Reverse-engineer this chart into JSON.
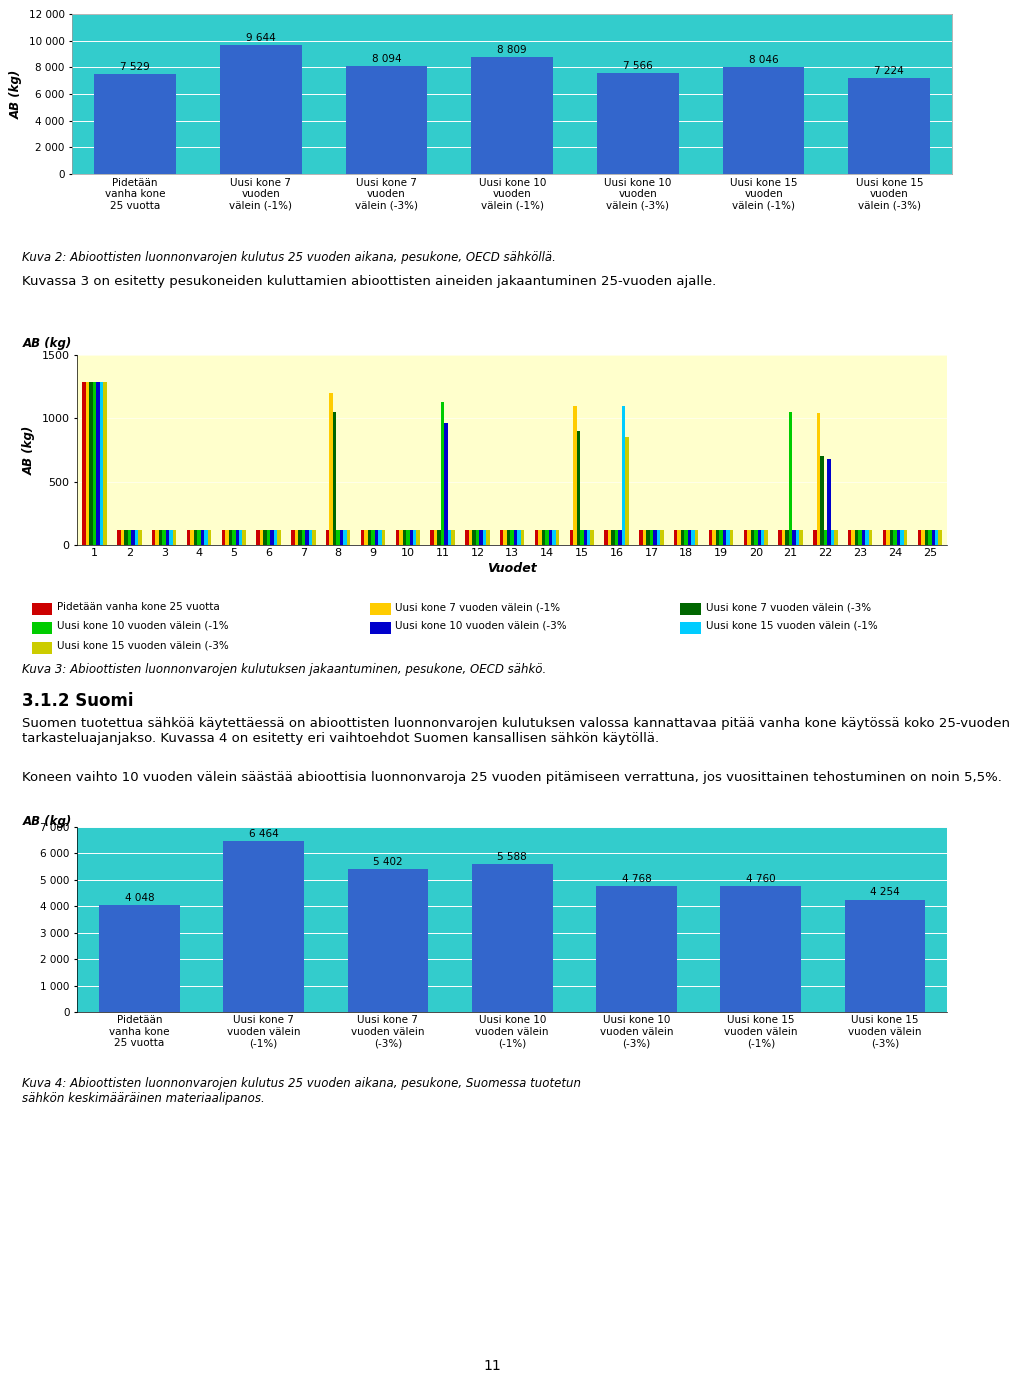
{
  "chart1": {
    "categories": [
      "Pidetään\nvanha kone\n25 vuotta",
      "Uusi kone 7\nvuoden\nvälein (-1%)",
      "Uusi kone 7\nvuoden\nvälein (-3%)",
      "Uusi kone 10\nvuoden\nvälein (-1%)",
      "Uusi kone 10\nvuoden\nvälein (-3%)",
      "Uusi kone 15\nvuoden\nvälein (-1%)",
      "Uusi kone 15\nvuoden\nvälein (-3%)"
    ],
    "values": [
      7529,
      9644,
      8094,
      8809,
      7566,
      8046,
      7224
    ],
    "bar_color": "#3366CC",
    "bg_color": "#33CCCC",
    "ylim": [
      0,
      12000
    ],
    "yticks": [
      0,
      2000,
      4000,
      6000,
      8000,
      10000,
      12000
    ],
    "ylabel": "AB (kg)",
    "caption": "Kuva 2: Abioottisten luonnonvarojen kulutus 25 vuoden aikana, pesukone, OECD sähköllä."
  },
  "text_between": "Kuvassa 3 on esitetty pesukoneiden kuluttamien abioottisten aineiden jakaantuminen 25-vuoden ajalle.",
  "chart2": {
    "xlabel": "Vuodet",
    "ylabel": "AB (kg)",
    "bg_color": "#FFFFCC",
    "ylim": [
      0,
      1500
    ],
    "yticks": [
      0,
      500,
      1000,
      1500
    ],
    "xticks": [
      1,
      2,
      3,
      4,
      5,
      6,
      7,
      8,
      9,
      10,
      11,
      12,
      13,
      14,
      15,
      16,
      17,
      18,
      19,
      20,
      21,
      22,
      23,
      24,
      25
    ],
    "series": [
      {
        "label": "Pidetään vanha kone 25 vuotta",
        "color": "#CC0000",
        "years": [
          1,
          2,
          3,
          4,
          5,
          6,
          7,
          8,
          9,
          10,
          11,
          12,
          13,
          14,
          15,
          16,
          17,
          18,
          19,
          20,
          21,
          22,
          23,
          24,
          25
        ],
        "values": [
          1290,
          120,
          120,
          120,
          120,
          120,
          120,
          120,
          120,
          120,
          120,
          120,
          120,
          120,
          120,
          120,
          120,
          120,
          120,
          120,
          120,
          120,
          120,
          120,
          120
        ]
      },
      {
        "label": "Uusi kone 7 vuoden välein (-1%",
        "color": "#FFCC00",
        "years": [
          1,
          2,
          3,
          4,
          5,
          6,
          7,
          8,
          9,
          10,
          11,
          12,
          13,
          14,
          15,
          16,
          17,
          18,
          19,
          20,
          21,
          22,
          23,
          24,
          25
        ],
        "values": [
          1290,
          120,
          120,
          120,
          120,
          120,
          120,
          1200,
          120,
          120,
          120,
          120,
          120,
          120,
          1100,
          120,
          120,
          120,
          120,
          120,
          120,
          1040,
          120,
          120,
          120
        ]
      },
      {
        "label": "Uusi kone 7 vuoden välein (-3%",
        "color": "#006600",
        "years": [
          1,
          2,
          3,
          4,
          5,
          6,
          7,
          8,
          9,
          10,
          11,
          12,
          13,
          14,
          15,
          16,
          17,
          18,
          19,
          20,
          21,
          22,
          23,
          24,
          25
        ],
        "values": [
          1290,
          120,
          120,
          120,
          120,
          120,
          120,
          1050,
          120,
          120,
          120,
          120,
          120,
          120,
          900,
          120,
          120,
          120,
          120,
          120,
          120,
          700,
          120,
          120,
          120
        ]
      },
      {
        "label": "Uusi kone 10 vuoden välein (-1%",
        "color": "#00CC00",
        "years": [
          1,
          2,
          3,
          4,
          5,
          6,
          7,
          8,
          9,
          10,
          11,
          12,
          13,
          14,
          15,
          16,
          17,
          18,
          19,
          20,
          21,
          22,
          23,
          24,
          25
        ],
        "values": [
          1290,
          120,
          120,
          120,
          120,
          120,
          120,
          120,
          120,
          120,
          1130,
          120,
          120,
          120,
          120,
          120,
          120,
          120,
          120,
          120,
          1050,
          120,
          120,
          120,
          120
        ]
      },
      {
        "label": "Uusi kone 10 vuoden välein (-3%",
        "color": "#0000CC",
        "years": [
          1,
          2,
          3,
          4,
          5,
          6,
          7,
          8,
          9,
          10,
          11,
          12,
          13,
          14,
          15,
          16,
          17,
          18,
          19,
          20,
          21,
          22,
          23,
          24,
          25
        ],
        "values": [
          1290,
          120,
          120,
          120,
          120,
          120,
          120,
          120,
          120,
          120,
          960,
          120,
          120,
          120,
          120,
          120,
          120,
          120,
          120,
          120,
          120,
          680,
          120,
          120,
          120
        ]
      },
      {
        "label": "Uusi kone 15 vuoden välein (-1%",
        "color": "#00CCFF",
        "years": [
          1,
          2,
          3,
          4,
          5,
          6,
          7,
          8,
          9,
          10,
          11,
          12,
          13,
          14,
          15,
          16,
          17,
          18,
          19,
          20,
          21,
          22,
          23,
          24,
          25
        ],
        "values": [
          1290,
          120,
          120,
          120,
          120,
          120,
          120,
          120,
          120,
          120,
          120,
          120,
          120,
          120,
          120,
          1100,
          120,
          120,
          120,
          120,
          120,
          120,
          120,
          120,
          120
        ]
      },
      {
        "label": "Uusi kone 15 vuoden välein (-3%",
        "color": "#CCCC00",
        "years": [
          1,
          2,
          3,
          4,
          5,
          6,
          7,
          8,
          9,
          10,
          11,
          12,
          13,
          14,
          15,
          16,
          17,
          18,
          19,
          20,
          21,
          22,
          23,
          24,
          25
        ],
        "values": [
          1290,
          120,
          120,
          120,
          120,
          120,
          120,
          120,
          120,
          120,
          120,
          120,
          120,
          120,
          120,
          850,
          120,
          120,
          120,
          120,
          120,
          120,
          120,
          120,
          120
        ]
      }
    ],
    "legend": [
      {
        "label": "Pidetään vanha kone 25 vuotta",
        "color": "#CC0000"
      },
      {
        "label": "Uusi kone 7 vuoden välein (-1%",
        "color": "#FFCC00"
      },
      {
        "label": "Uusi kone 7 vuoden välein (-3%",
        "color": "#006600"
      },
      {
        "label": "Uusi kone 10 vuoden välein (-1%",
        "color": "#00CC00"
      },
      {
        "label": "Uusi kone 10 vuoden välein (-3%",
        "color": "#0000CC"
      },
      {
        "label": "Uusi kone 15 vuoden välein (-1%",
        "color": "#00CCFF"
      },
      {
        "label": "Uusi kone 15 vuoden välein (-3%",
        "color": "#CCCC00"
      }
    ],
    "caption": "Kuva 3: Abioottisten luonnonvarojen kulutuksen jakaantuminen, pesukone, OECD sähkö."
  },
  "section_title": "3.1.2 Suomi",
  "text_section": "Suomen tuotettua sähköä käytettäessä on abioottisten luonnonvarojen kulutuksen valossa kannattavaa pitää vanha kone käytössä koko 25-vuoden tarkasteluajanjakso. Kuvassa 4 on esitetty eri vaihtoehdot Suomen kansallisen sähkön käytöllä.",
  "text_section2": "Koneen vaihto 10 vuoden välein säästää abioottisia luonnonvaroja 25 vuoden pitämiseen verrattuna, jos vuosittainen tehostuminen on noin 5,5%.",
  "chart4": {
    "categories": [
      "Pidetään\nvanha kone\n25 vuotta",
      "Uusi kone 7\nvuoden välein\n(-1%)",
      "Uusi kone 7\nvuoden välein\n(-3%)",
      "Uusi kone 10\nvuoden välein\n(-1%)",
      "Uusi kone 10\nvuoden välein\n(-3%)",
      "Uusi kone 15\nvuoden välein\n(-1%)",
      "Uusi kone 15\nvuoden välein\n(-3%)"
    ],
    "values": [
      4048,
      6464,
      5402,
      5588,
      4768,
      4760,
      4254
    ],
    "bar_color": "#3366CC",
    "bg_color": "#33CCCC",
    "ylim": [
      0,
      7000
    ],
    "yticks": [
      0,
      1000,
      2000,
      3000,
      4000,
      5000,
      6000,
      7000
    ],
    "ylabel": "AB (kg)",
    "caption": "Kuva 4: Abioottisten luonnonvarojen kulutus 25 vuoden aikana, pesukone, Suomessa tuotetun\nsähkön keskimääräinen materiaalipanos."
  },
  "page_number": "11",
  "border_color": "#AAAAAA",
  "bg_chart_frame": "#FFFFEE"
}
